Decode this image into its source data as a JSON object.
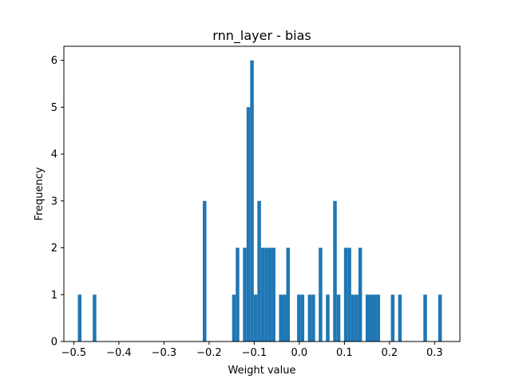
{
  "chart_data": {
    "type": "bar",
    "title": "rnn_layer - bias",
    "xlabel": "Weight value",
    "ylabel": "Frequency",
    "xlim": [
      -0.522,
      0.356
    ],
    "ylim": [
      0,
      6.3
    ],
    "grid": false,
    "legend": "none",
    "bar_color": "#1f77b4",
    "bin_width": 0.008,
    "xticks": [
      -0.5,
      -0.4,
      -0.3,
      -0.2,
      -0.1,
      0.0,
      0.1,
      0.2,
      0.3
    ],
    "xtick_labels": [
      "−0.5",
      "−0.4",
      "−0.3",
      "−0.2",
      "−0.1",
      "0.0",
      "0.1",
      "0.2",
      "0.3"
    ],
    "yticks": [
      0,
      1,
      2,
      3,
      4,
      5,
      6
    ],
    "ytick_labels": [
      "0",
      "1",
      "2",
      "3",
      "4",
      "5",
      "6"
    ],
    "bins": [
      {
        "x": -0.487,
        "count": 1
      },
      {
        "x": -0.454,
        "count": 1
      },
      {
        "x": -0.21,
        "count": 3
      },
      {
        "x": -0.145,
        "count": 1
      },
      {
        "x": -0.137,
        "count": 2
      },
      {
        "x": -0.121,
        "count": 2
      },
      {
        "x": -0.113,
        "count": 5
      },
      {
        "x": -0.105,
        "count": 6
      },
      {
        "x": -0.097,
        "count": 1
      },
      {
        "x": -0.089,
        "count": 3
      },
      {
        "x": -0.081,
        "count": 2
      },
      {
        "x": -0.073,
        "count": 2
      },
      {
        "x": -0.065,
        "count": 2
      },
      {
        "x": -0.057,
        "count": 2
      },
      {
        "x": -0.041,
        "count": 1
      },
      {
        "x": -0.033,
        "count": 1
      },
      {
        "x": -0.025,
        "count": 2
      },
      {
        "x": -0.001,
        "count": 1
      },
      {
        "x": 0.007,
        "count": 1
      },
      {
        "x": 0.023,
        "count": 1
      },
      {
        "x": 0.031,
        "count": 1
      },
      {
        "x": 0.047,
        "count": 2
      },
      {
        "x": 0.063,
        "count": 1
      },
      {
        "x": 0.079,
        "count": 3
      },
      {
        "x": 0.087,
        "count": 1
      },
      {
        "x": 0.103,
        "count": 2
      },
      {
        "x": 0.111,
        "count": 2
      },
      {
        "x": 0.119,
        "count": 1
      },
      {
        "x": 0.127,
        "count": 1
      },
      {
        "x": 0.135,
        "count": 2
      },
      {
        "x": 0.151,
        "count": 1
      },
      {
        "x": 0.159,
        "count": 1
      },
      {
        "x": 0.167,
        "count": 1
      },
      {
        "x": 0.175,
        "count": 1
      },
      {
        "x": 0.207,
        "count": 1
      },
      {
        "x": 0.223,
        "count": 1
      },
      {
        "x": 0.279,
        "count": 1
      },
      {
        "x": 0.312,
        "count": 1
      }
    ]
  }
}
